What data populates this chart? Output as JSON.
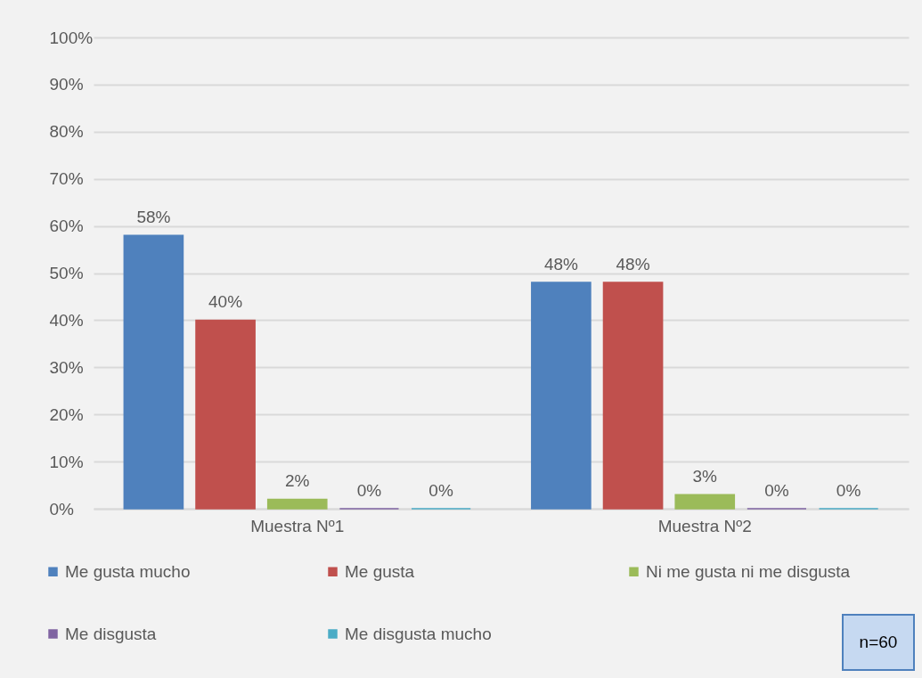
{
  "chart_data": {
    "type": "bar",
    "categories": [
      "Muestra Nº1",
      "Muestra Nº2"
    ],
    "series": [
      {
        "name": "Me gusta mucho",
        "color": "#4f81bd",
        "values": [
          58,
          48
        ],
        "value_labels": [
          "58%",
          "48%"
        ]
      },
      {
        "name": "Me gusta",
        "color": "#c0504d",
        "values": [
          40,
          48
        ],
        "value_labels": [
          "40%",
          "48%"
        ]
      },
      {
        "name": "Ni me gusta ni me disgusta",
        "color": "#9bbb59",
        "values": [
          2,
          3
        ],
        "value_labels": [
          "2%",
          "3%"
        ]
      },
      {
        "name": "Me disgusta",
        "color": "#8064a2",
        "values": [
          0,
          0
        ],
        "value_labels": [
          "0%",
          "0%"
        ]
      },
      {
        "name": "Me disgusta mucho",
        "color": "#4bacc6",
        "values": [
          0,
          0
        ],
        "value_labels": [
          "0%",
          "0%"
        ]
      }
    ],
    "ylim": [
      0,
      100
    ],
    "yticks": [
      {
        "value": 0,
        "label": "0%"
      },
      {
        "value": 10,
        "label": "10%"
      },
      {
        "value": 20,
        "label": "20%"
      },
      {
        "value": 30,
        "label": "30%"
      },
      {
        "value": 40,
        "label": "40%"
      },
      {
        "value": 50,
        "label": "50%"
      },
      {
        "value": 60,
        "label": "60%"
      },
      {
        "value": 70,
        "label": "70%"
      },
      {
        "value": 80,
        "label": "80%"
      },
      {
        "value": 90,
        "label": "90%"
      },
      {
        "value": 100,
        "label": "100%"
      }
    ],
    "grid": "y",
    "legend": "bottom",
    "annotations": [
      "n=60"
    ]
  }
}
